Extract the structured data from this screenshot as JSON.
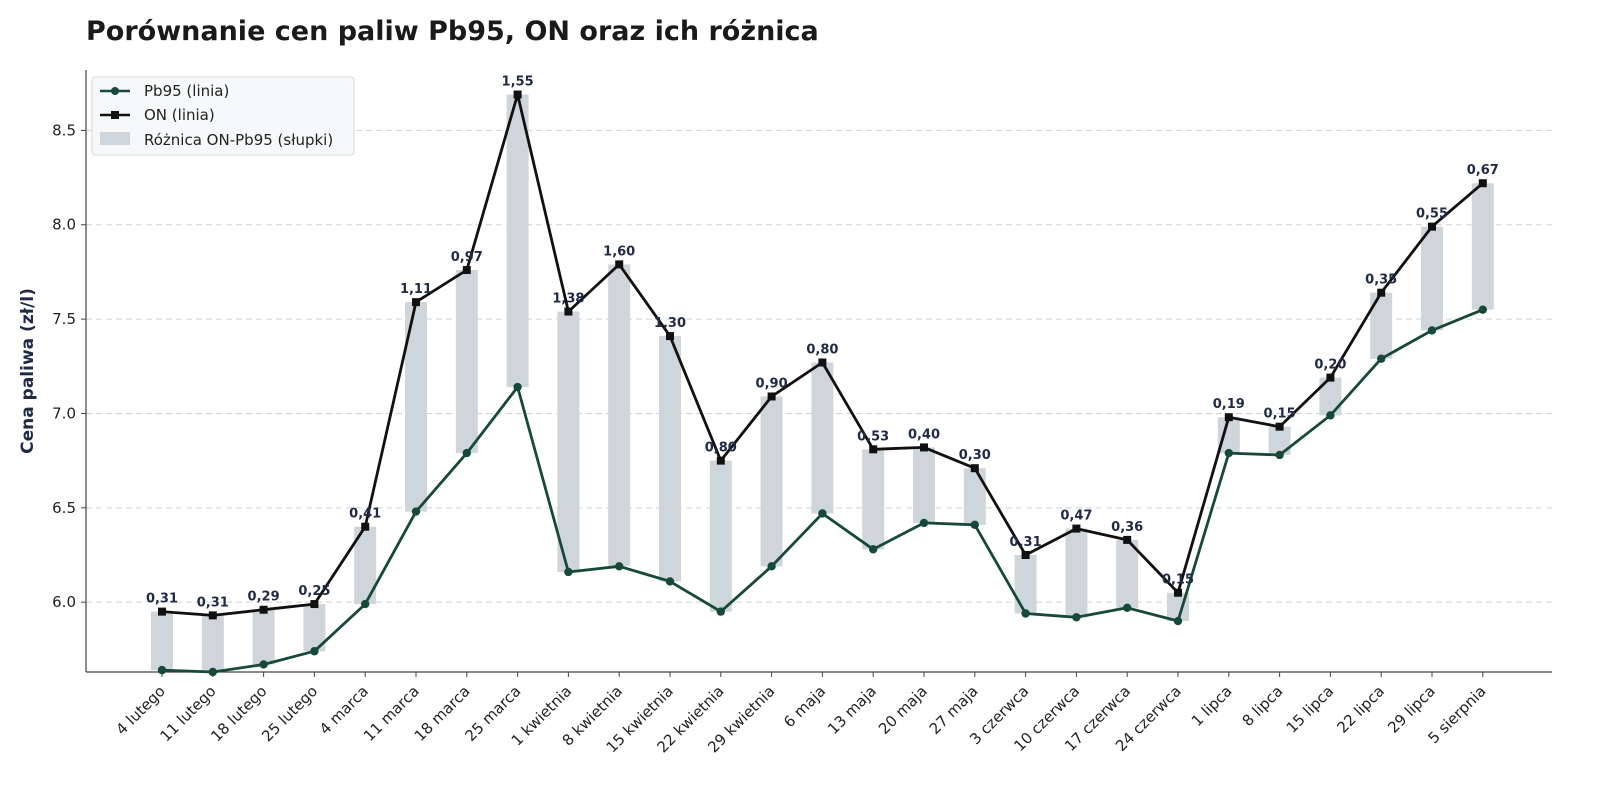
{
  "chart_data": {
    "type": "line",
    "title": "Porównanie cen paliw Pb95, ON oraz ich różnica",
    "ylabel": "Cena paliwa (zł/l)",
    "xlabel": "",
    "ylim": [
      5.63,
      8.82
    ],
    "yticks": [
      "6.0",
      "6.5",
      "7.0",
      "7.5",
      "8.0",
      "8.5"
    ],
    "grid": "horizontal dashed",
    "legend_position": "top-left",
    "categories": [
      "4 lutego",
      "11 lutego",
      "18 lutego",
      "25 lutego",
      "4 marca",
      "11 marca",
      "18 marca",
      "25 marca",
      "1 kwietnia",
      "8 kwietnia",
      "15 kwietnia",
      "22 kwietnia",
      "29 kwietnia",
      "6 maja",
      "13 maja",
      "20 maja",
      "27 maja",
      "3 czerwca",
      "10 czerwca",
      "17 czerwca",
      "24 czerwca",
      "1 lipca",
      "8 lipca",
      "15 lipca",
      "22 lipca",
      "29 lipca",
      "5 sierpnia"
    ],
    "series": [
      {
        "name": "Pb95 (linia)",
        "color": "#17493a",
        "marker": "circle",
        "values": [
          5.64,
          5.63,
          5.67,
          5.74,
          5.99,
          6.48,
          6.79,
          7.14,
          6.16,
          6.19,
          6.11,
          5.95,
          6.19,
          6.47,
          6.28,
          6.42,
          6.41,
          5.94,
          5.92,
          5.97,
          5.9,
          6.79,
          6.78,
          6.99,
          7.29,
          7.44,
          7.55
        ]
      },
      {
        "name": "ON (linia)",
        "color": "#111111",
        "marker": "square",
        "values": [
          5.95,
          5.93,
          5.96,
          5.99,
          6.4,
          7.59,
          7.76,
          8.69,
          7.54,
          7.79,
          7.41,
          6.75,
          7.09,
          7.27,
          6.81,
          6.82,
          6.71,
          6.25,
          6.39,
          6.33,
          6.05,
          6.98,
          6.93,
          7.19,
          7.64,
          7.99,
          8.22
        ]
      },
      {
        "name": "Różnica ON-Pb95 (słupki)",
        "color": "#cfd6db",
        "type": "bar",
        "values": [
          0.31,
          0.31,
          0.29,
          0.25,
          0.41,
          1.11,
          0.97,
          1.55,
          1.38,
          1.6,
          1.3,
          0.8,
          0.9,
          0.8,
          0.53,
          0.4,
          0.3,
          0.31,
          0.47,
          0.36,
          0.15,
          0.19,
          0.15,
          0.2,
          0.35,
          0.55,
          0.67
        ]
      }
    ],
    "diff_labels": [
      "0,31",
      "0,31",
      "0,29",
      "0,25",
      "0,41",
      "1,11",
      "0,97",
      "1,55",
      "1,38",
      "1,60",
      "1,30",
      "0,80",
      "0,90",
      "0,80",
      "0,53",
      "0,40",
      "0,30",
      "0,31",
      "0,47",
      "0,36",
      "0,15",
      "0,19",
      "0,15",
      "0,20",
      "0,35",
      "0,55",
      "0,67"
    ]
  }
}
